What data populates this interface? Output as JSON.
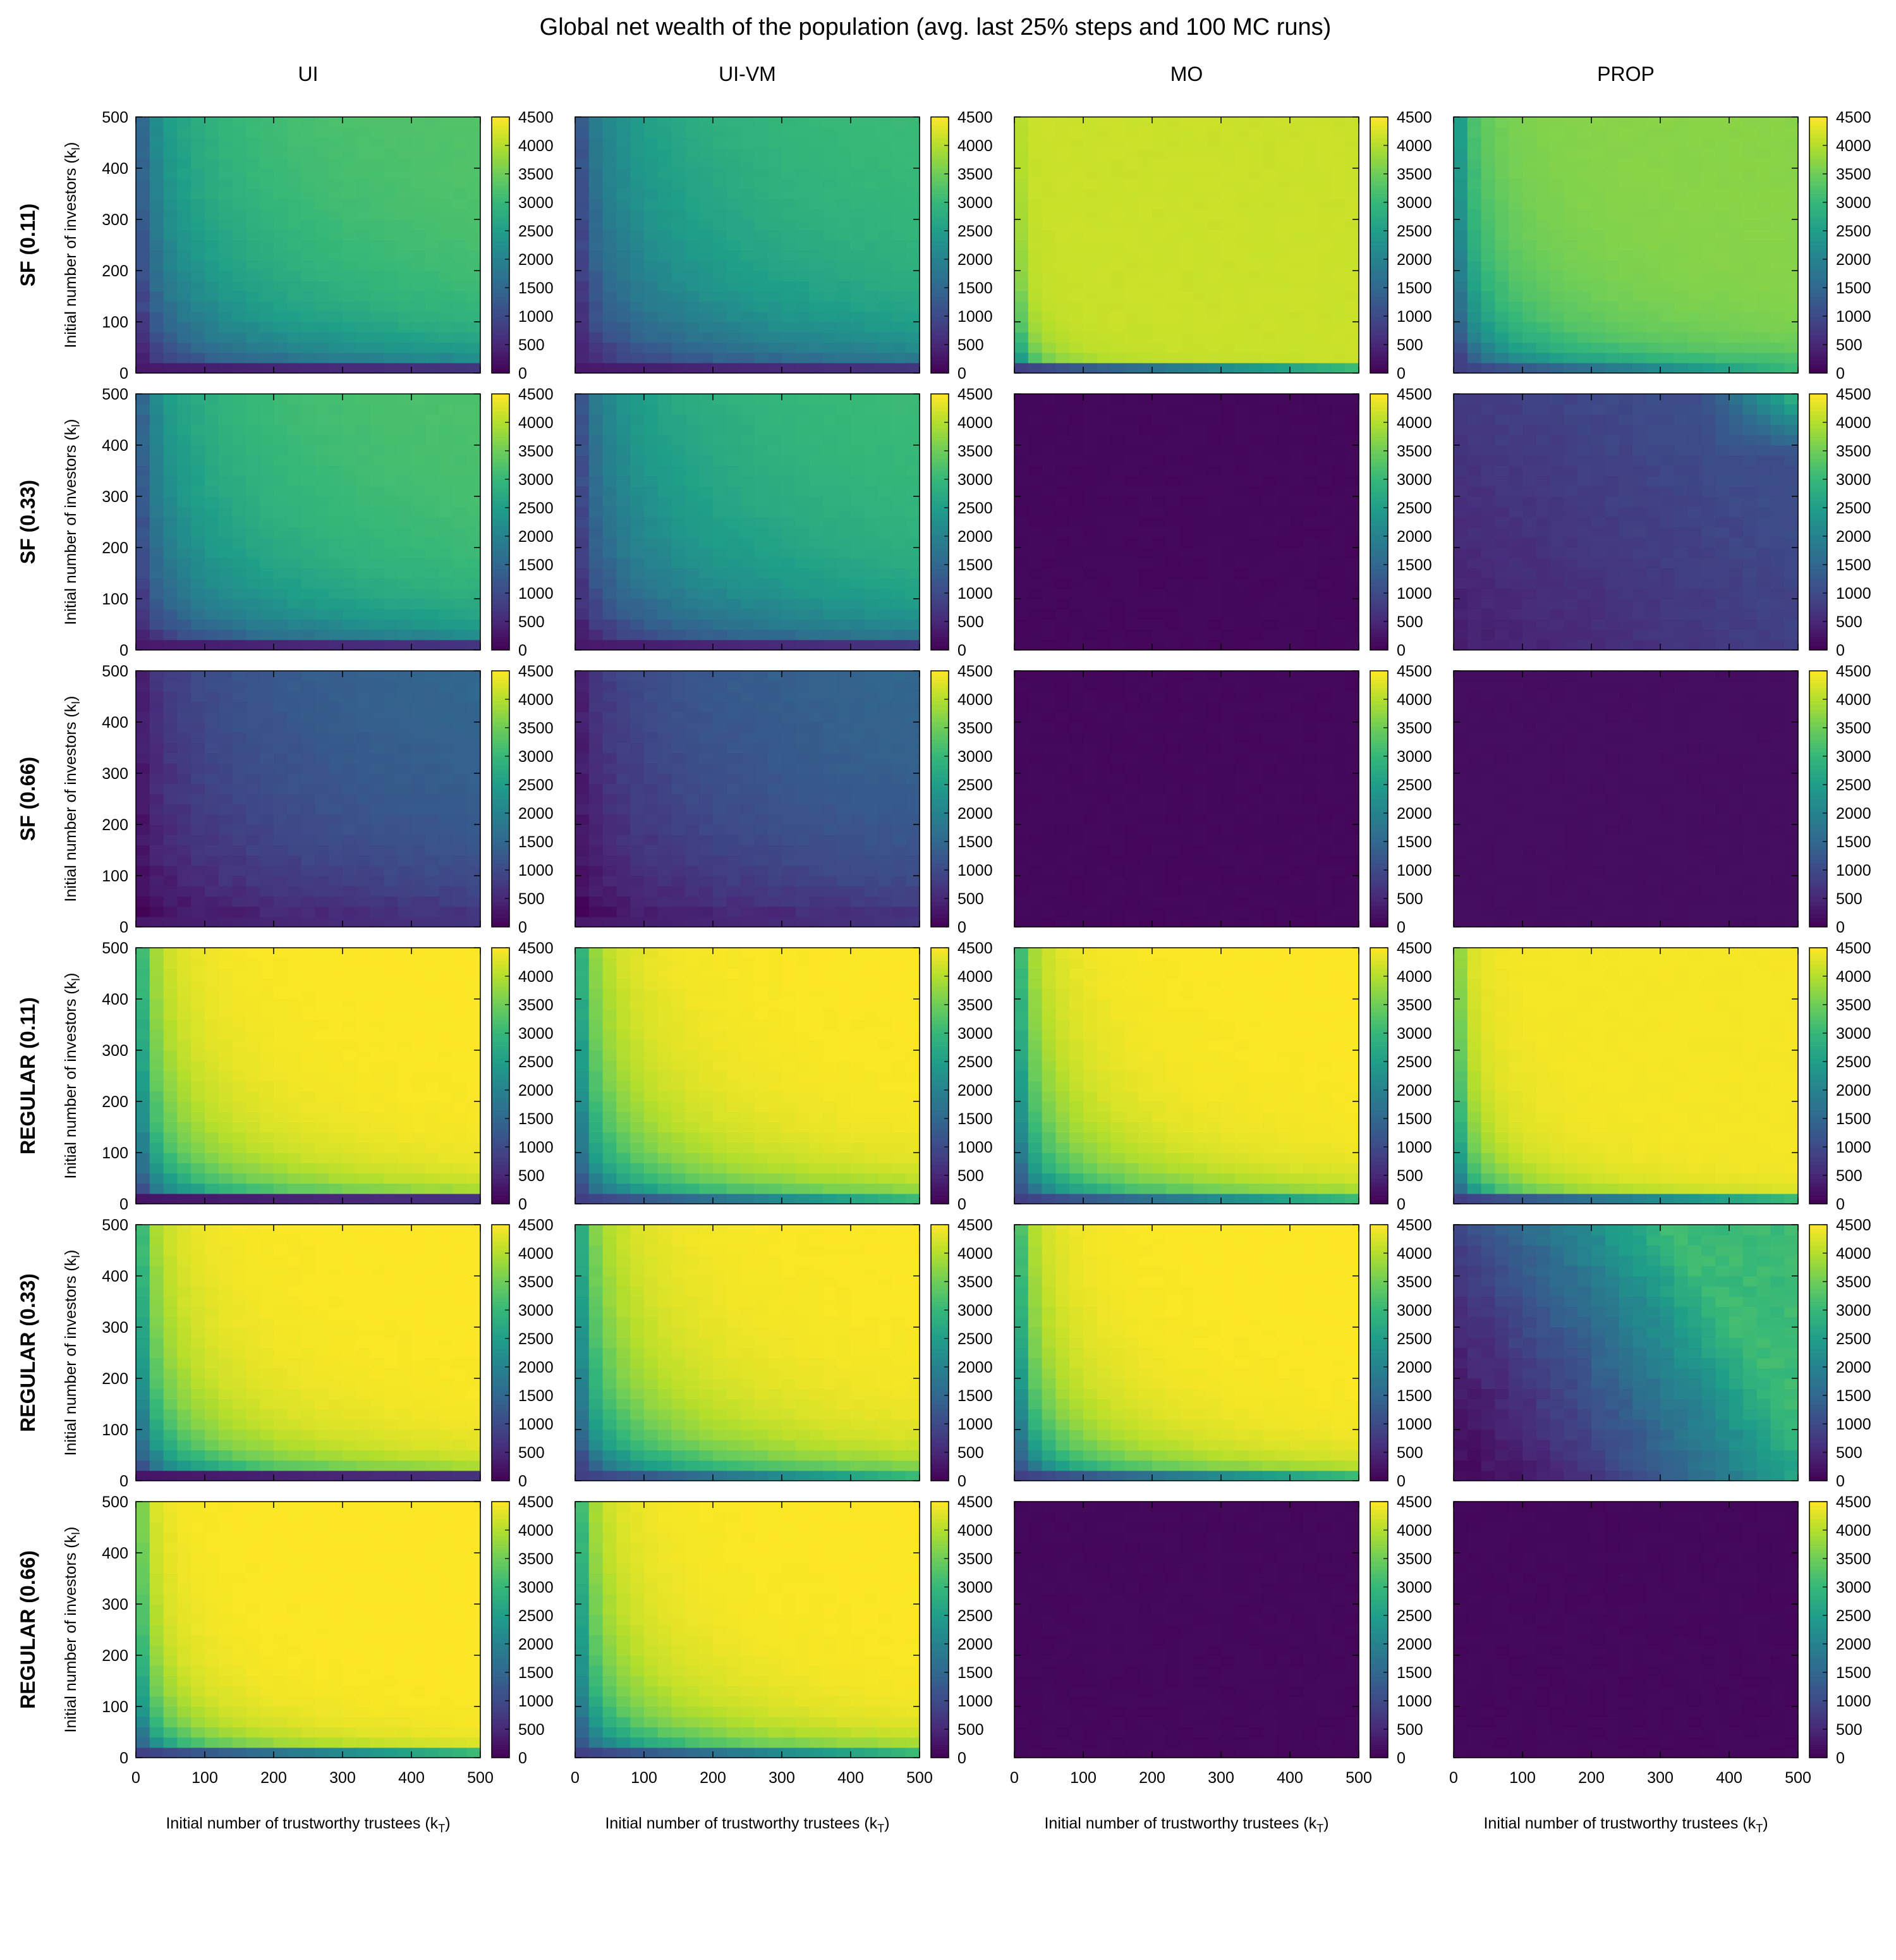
{
  "figure": {
    "title": "Global net wealth of the population (avg. last 25% steps and 100 MC runs)",
    "column_titles": [
      "UI",
      "UI-VM",
      "MO",
      "PROP"
    ],
    "row_labels": [
      "SF (0.11)",
      "SF (0.33)",
      "SF (0.66)",
      "REGULAR (0.11)",
      "REGULAR (0.33)",
      "REGULAR (0.66)"
    ],
    "ylabel_main": "Initial number of investors (k",
    "ylabel_sub": "I",
    "ylabel_end": ")",
    "xlabel_main": "Initial number of trustworthy trustees (k",
    "xlabel_sub": "T",
    "xlabel_end": ")",
    "colormap": "viridis",
    "grid": false
  },
  "chart_data": {
    "type": "heatmap",
    "x_label": "Initial number of trustworthy trustees (kT)",
    "y_label": "Initial number of investors (kI)",
    "x_ticks": [
      0,
      100,
      200,
      300,
      400,
      500
    ],
    "y_ticks": [
      0,
      100,
      200,
      300,
      400,
      500
    ],
    "x_range": [
      0,
      500
    ],
    "y_range": [
      0,
      500
    ],
    "colorbar_ticks": [
      0,
      500,
      1000,
      1500,
      2000,
      2500,
      3000,
      3500,
      4000,
      4500
    ],
    "colorbar_range": [
      0,
      4500
    ],
    "grid_cells": 25,
    "panels": [
      {
        "row": "SF (0.11)",
        "column": "UI",
        "plateau": 3300,
        "t": 1.5,
        "edge": "small"
      },
      {
        "row": "SF (0.11)",
        "column": "UI-VM",
        "plateau": 3150,
        "t": 1.2,
        "edge": "small"
      },
      {
        "row": "SF (0.11)",
        "column": "MO",
        "plateau": 4150,
        "t": 8.5,
        "edge": "high",
        "noise": 180
      },
      {
        "row": "SF (0.11)",
        "column": "PROP",
        "plateau": 3700,
        "t": 2.8,
        "edge": "high"
      },
      {
        "row": "SF (0.33)",
        "column": "UI",
        "plateau": 3250,
        "t": 1.5,
        "edge": "small"
      },
      {
        "row": "SF (0.33)",
        "column": "UI-VM",
        "plateau": 3150,
        "t": 1.2,
        "edge": "small"
      },
      {
        "row": "SF (0.33)",
        "column": "MO",
        "flat": 80
      },
      {
        "row": "SF (0.33)",
        "column": "PROP",
        "prop33": true
      },
      {
        "row": "SF (0.66)",
        "column": "UI",
        "plateau": 1700,
        "t": 0.7,
        "edge": "small"
      },
      {
        "row": "SF (0.66)",
        "column": "UI-VM",
        "plateau": 1700,
        "t": 0.7,
        "edge": "small"
      },
      {
        "row": "SF (0.66)",
        "column": "MO",
        "flat": 80
      },
      {
        "row": "SF (0.66)",
        "column": "PROP",
        "flat": 160
      },
      {
        "row": "REGULAR (0.11)",
        "column": "UI",
        "plateau": 4500,
        "t": 2.8,
        "edge": "low"
      },
      {
        "row": "REGULAR (0.11)",
        "column": "UI-VM",
        "plateau": 4500,
        "t": 2.5,
        "edge": "high"
      },
      {
        "row": "REGULAR (0.11)",
        "column": "MO",
        "plateau": 4500,
        "t": 2.8,
        "edge": "high"
      },
      {
        "row": "REGULAR (0.11)",
        "column": "PROP",
        "plateau": 4450,
        "t": 4.5,
        "edge": "high"
      },
      {
        "row": "REGULAR (0.33)",
        "column": "UI",
        "plateau": 4500,
        "t": 2.8,
        "edge": "low"
      },
      {
        "row": "REGULAR (0.33)",
        "column": "UI-VM",
        "plateau": 4500,
        "t": 2.3,
        "edge": "high"
      },
      {
        "row": "REGULAR (0.33)",
        "column": "MO",
        "plateau": 4500,
        "t": 3.0,
        "edge": "high"
      },
      {
        "row": "REGULAR (0.33)",
        "column": "PROP",
        "prop_reg33": true
      },
      {
        "row": "REGULAR (0.66)",
        "column": "UI",
        "plateau": 4500,
        "t": 4.0,
        "edge": "high"
      },
      {
        "row": "REGULAR (0.66)",
        "column": "UI-VM",
        "plateau": 4500,
        "t": 2.8,
        "edge": "high"
      },
      {
        "row": "REGULAR (0.66)",
        "column": "MO",
        "flat": 80
      },
      {
        "row": "REGULAR (0.66)",
        "column": "PROP",
        "flat": 80
      }
    ]
  }
}
